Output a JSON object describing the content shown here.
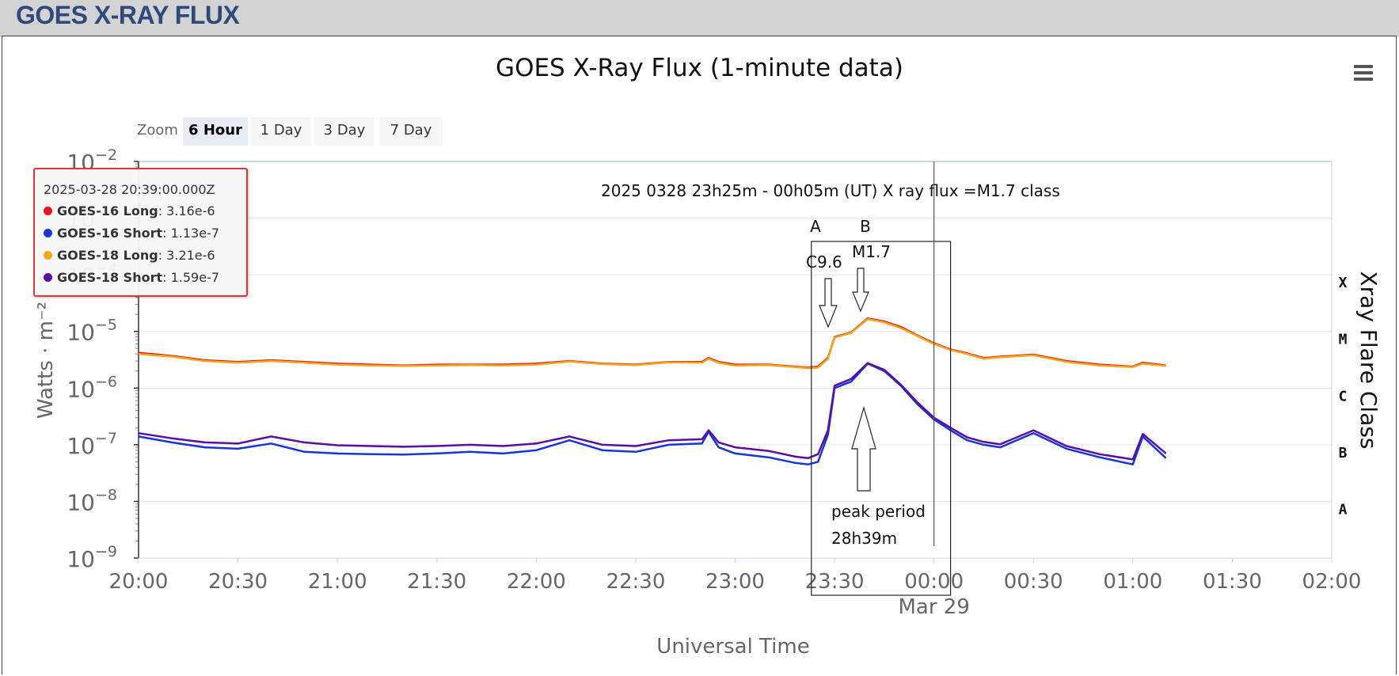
{
  "header": {
    "title": "GOES X-RAY FLUX"
  },
  "zoom": {
    "label": "Zoom",
    "buttons": [
      "6 Hour",
      "1 Day",
      "3 Day",
      "7 Day"
    ],
    "active": "6 Hour"
  },
  "tooltip": {
    "time": "2025-03-28 20:39:00.000Z",
    "rows": [
      {
        "name": "GOES-16 Long",
        "value": ": 3.16e-6",
        "color": "#e8141c"
      },
      {
        "name": "GOES-16 Short",
        "value": ": 1.13e-7",
        "color": "#1736d8"
      },
      {
        "name": "GOES-18 Long",
        "value": ": 3.21e-6",
        "color": "#f2a71c"
      },
      {
        "name": "GOES-18 Short",
        "value": ": 1.59e-7",
        "color": "#5a0f9e"
      }
    ]
  },
  "chart_data": {
    "type": "line",
    "title": "GOES X-Ray Flux (1-minute data)",
    "xlabel": "Universal Time",
    "ylabel": "Watts · m⁻²",
    "y_right_label": "Xray Flare Class",
    "y_scale": "log",
    "ylim": [
      1e-09,
      0.01
    ],
    "xlim": [
      "2025-03-28T20:00Z",
      "2025-03-29T02:00Z"
    ],
    "x_ticks": [
      "20:00",
      "20:30",
      "21:00",
      "21:30",
      "22:00",
      "22:30",
      "23:00",
      "23:30",
      "00:00",
      "00:30",
      "01:00",
      "01:30",
      "02:00"
    ],
    "x_date_label": "Mar 29",
    "y_ticks": [
      {
        "value": 1e-09,
        "base": "10",
        "exp": "−9"
      },
      {
        "value": 1e-08,
        "base": "10",
        "exp": "−8"
      },
      {
        "value": 1e-07,
        "base": "10",
        "exp": "−7"
      },
      {
        "value": 1e-06,
        "base": "10",
        "exp": "−6"
      },
      {
        "value": 1e-05,
        "base": "10",
        "exp": "−5"
      },
      {
        "value": 0.0001,
        "base": "10",
        "exp": "−4"
      },
      {
        "value": 0.001,
        "base": "10",
        "exp": "−3"
      },
      {
        "value": 0.01,
        "base": "10",
        "exp": "−2"
      }
    ],
    "flare_classes": [
      {
        "label": "X",
        "value": 0.0001
      },
      {
        "label": "M",
        "value": 1e-05
      },
      {
        "label": "C",
        "value": 1e-06
      },
      {
        "label": "B",
        "value": 1e-07
      },
      {
        "label": "A",
        "value": 1e-08
      }
    ],
    "x": [
      "20:00",
      "20:10",
      "20:20",
      "20:30",
      "20:40",
      "20:50",
      "21:00",
      "21:10",
      "21:20",
      "21:30",
      "21:40",
      "21:50",
      "22:00",
      "22:10",
      "22:20",
      "22:30",
      "22:40",
      "22:50",
      "22:52",
      "22:55",
      "23:00",
      "23:10",
      "23:18",
      "23:22",
      "23:25",
      "23:28",
      "23:30",
      "23:35",
      "23:40",
      "23:45",
      "23:50",
      "23:55",
      "00:00",
      "00:05",
      "00:10",
      "00:15",
      "00:20",
      "00:30",
      "00:40",
      "00:50",
      "01:00",
      "01:03",
      "01:10"
    ],
    "series": [
      {
        "name": "GOES-16 Long",
        "color": "#e8141c",
        "values": [
          4.2e-06,
          3.7e-06,
          3.1e-06,
          2.9e-06,
          3.1e-06,
          2.9e-06,
          2.7e-06,
          2.6e-06,
          2.5e-06,
          2.6e-06,
          2.6e-06,
          2.6e-06,
          2.7e-06,
          3e-06,
          2.7e-06,
          2.6e-06,
          2.9e-06,
          2.9e-06,
          3.4e-06,
          2.9e-06,
          2.6e-06,
          2.6e-06,
          2.4e-06,
          2.3e-06,
          2.4e-06,
          3.4e-06,
          8e-06,
          9.6e-06,
          1.7e-05,
          1.5e-05,
          1.2e-05,
          8.5e-06,
          6.2e-06,
          4.8e-06,
          4.1e-06,
          3.4e-06,
          3.6e-06,
          3.9e-06,
          3e-06,
          2.6e-06,
          2.4e-06,
          2.8e-06,
          2.5e-06
        ]
      },
      {
        "name": "GOES-16 Short",
        "color": "#1736d8",
        "values": [
          1.4e-07,
          1.1e-07,
          9e-08,
          8.5e-08,
          1.05e-07,
          7.5e-08,
          7e-08,
          6.8e-08,
          6.7e-08,
          7e-08,
          7.5e-08,
          7e-08,
          8e-08,
          1.2e-07,
          8e-08,
          7.5e-08,
          1e-07,
          1.05e-07,
          1.7e-07,
          9e-08,
          7e-08,
          6e-08,
          4.8e-08,
          4.5e-08,
          5e-08,
          1.5e-07,
          1e-06,
          1.3e-06,
          2.7e-06,
          2e-06,
          1.1e-06,
          5.2e-07,
          2.8e-07,
          1.8e-07,
          1.2e-07,
          1e-07,
          9e-08,
          1.6e-07,
          8.5e-08,
          6e-08,
          4.5e-08,
          1.4e-07,
          5.8e-08
        ]
      },
      {
        "name": "GOES-18 Long",
        "color": "#f2a71c",
        "values": [
          4e-06,
          3.6e-06,
          3e-06,
          2.8e-06,
          3e-06,
          2.8e-06,
          2.6e-06,
          2.5e-06,
          2.45e-06,
          2.5e-06,
          2.55e-06,
          2.5e-06,
          2.6e-06,
          2.95e-06,
          2.65e-06,
          2.55e-06,
          2.85e-06,
          2.8e-06,
          3.3e-06,
          2.8e-06,
          2.5e-06,
          2.55e-06,
          2.35e-06,
          2.25e-06,
          2.3e-06,
          3.3e-06,
          7.8e-06,
          9.4e-06,
          1.65e-05,
          1.45e-05,
          1.15e-05,
          8.3e-06,
          6e-06,
          4.7e-06,
          4e-06,
          3.3e-06,
          3.5e-06,
          3.8e-06,
          2.9e-06,
          2.5e-06,
          2.35e-06,
          2.7e-06,
          2.45e-06
        ]
      },
      {
        "name": "GOES-18 Short",
        "color": "#5a0f9e",
        "values": [
          1.6e-07,
          1.3e-07,
          1.1e-07,
          1.05e-07,
          1.4e-07,
          1.1e-07,
          9.8e-08,
          9.5e-08,
          9.2e-08,
          9.5e-08,
          1e-07,
          9.5e-08,
          1.05e-07,
          1.4e-07,
          1e-07,
          9.5e-08,
          1.2e-07,
          1.25e-07,
          1.8e-07,
          1.1e-07,
          9e-08,
          7.8e-08,
          6.2e-08,
          5.8e-08,
          6.8e-08,
          1.8e-07,
          1.1e-06,
          1.45e-06,
          2.75e-06,
          2.1e-06,
          1.15e-06,
          5.6e-07,
          3e-07,
          2e-07,
          1.35e-07,
          1.12e-07,
          1.02e-07,
          1.8e-07,
          9.5e-08,
          6.8e-08,
          5.5e-08,
          1.55e-07,
          7e-08
        ]
      }
    ],
    "annotations": {
      "event": "2025  0328   23h25m - 00h05m (UT)      X ray flux =M1.7 class",
      "marker_a": "A",
      "marker_b": "B",
      "flare_a": "C9.6",
      "flare_b": "M1.7",
      "peak_line1": "peak period",
      "peak_line2": "28h39m",
      "box_start": "23:23",
      "box_end": "00:05",
      "marker_line": "00:00"
    }
  }
}
